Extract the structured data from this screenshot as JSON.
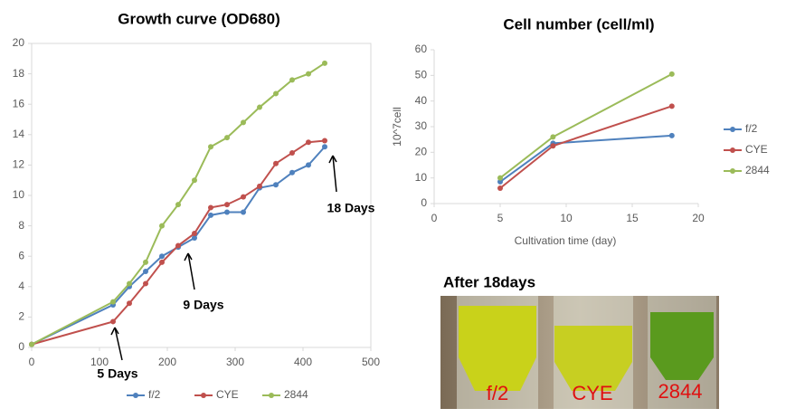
{
  "chart_data": [
    {
      "type": "line",
      "title": "Growth curve (OD680)",
      "x": [
        0,
        120,
        144,
        168,
        192,
        216,
        240,
        264,
        288,
        312,
        336,
        360,
        384,
        408,
        432
      ],
      "series": [
        {
          "name": "f/2",
          "color": "#4f81bd",
          "values": [
            0.2,
            2.8,
            4.0,
            5.0,
            6.0,
            6.6,
            7.2,
            8.7,
            8.9,
            8.9,
            10.5,
            10.7,
            11.5,
            12.0,
            13.2
          ]
        },
        {
          "name": "CYE",
          "color": "#c0504d",
          "values": [
            0.2,
            1.7,
            2.9,
            4.2,
            5.6,
            6.7,
            7.5,
            9.2,
            9.4,
            9.9,
            10.6,
            12.1,
            12.8,
            13.5,
            13.6
          ]
        },
        {
          "name": "2844",
          "color": "#9bbb59",
          "values": [
            0.2,
            3.0,
            4.2,
            5.6,
            8.0,
            9.4,
            11.0,
            13.2,
            13.8,
            14.8,
            15.8,
            16.7,
            17.6,
            18.0,
            18.7
          ]
        }
      ],
      "xlim": [
        0,
        500
      ],
      "xticks": [
        0,
        100,
        200,
        300,
        400,
        500
      ],
      "ylim": [
        0,
        20
      ],
      "yticks": [
        0,
        2,
        4,
        6,
        8,
        10,
        12,
        14,
        16,
        18,
        20
      ],
      "grid": false,
      "legend": "bottom",
      "annotations": [
        "5 Days",
        "9 Days",
        "18 Days"
      ]
    },
    {
      "type": "line",
      "title": "Cell number (cell/ml)",
      "x_label": "Cultivation time (day)",
      "y_label": "10^7cell",
      "x": [
        5,
        9,
        18
      ],
      "series": [
        {
          "name": "f/2",
          "color": "#4f81bd",
          "values": [
            8.5,
            23.5,
            26.5
          ]
        },
        {
          "name": "CYE",
          "color": "#c0504d",
          "values": [
            6,
            22.5,
            38
          ]
        },
        {
          "name": "2844",
          "color": "#9bbb59",
          "values": [
            10,
            26,
            50.5
          ]
        }
      ],
      "xlim": [
        0,
        20
      ],
      "xticks": [
        0,
        5,
        10,
        15,
        20
      ],
      "ylim": [
        0,
        60
      ],
      "yticks": [
        0,
        10,
        20,
        30,
        40,
        50,
        60
      ],
      "grid": false,
      "legend": "right"
    }
  ],
  "photo": {
    "title": "After 18days",
    "labels": [
      "f/2",
      "CYE",
      "2844"
    ]
  }
}
